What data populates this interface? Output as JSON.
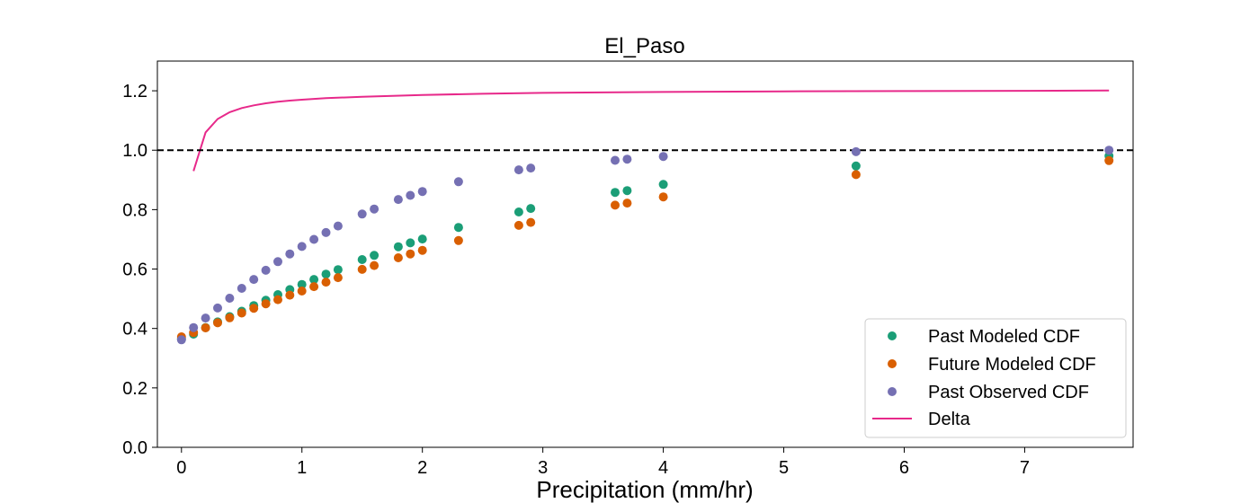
{
  "chart_data": {
    "type": "scatter",
    "title": "El_Paso",
    "xlabel": "Precipitation (mm/hr)",
    "ylabel": "",
    "xlim": [
      -0.2,
      7.9
    ],
    "ylim": [
      0.0,
      1.3
    ],
    "xticks": [
      "0",
      "1",
      "2",
      "3",
      "4",
      "5",
      "6",
      "7"
    ],
    "yticks": [
      "0.0",
      "0.2",
      "0.4",
      "0.6",
      "0.8",
      "1.0",
      "1.2"
    ],
    "grid": false,
    "legend_position": "lower-right",
    "reference_line": {
      "y": 1.0,
      "style": "dashed",
      "color": "#000000"
    },
    "series": [
      {
        "name": "Past Modeled CDF",
        "kind": "scatter",
        "color": "#1b9e77",
        "x": [
          0.0,
          0.1,
          0.2,
          0.3,
          0.4,
          0.5,
          0.6,
          0.7,
          0.8,
          0.9,
          1.0,
          1.1,
          1.2,
          1.3,
          1.5,
          1.6,
          1.8,
          1.9,
          2.0,
          2.3,
          2.8,
          2.9,
          3.6,
          3.7,
          4.0,
          5.6,
          7.7
        ],
        "y": [
          0.365,
          0.381,
          0.403,
          0.422,
          0.44,
          0.458,
          0.477,
          0.495,
          0.514,
          0.531,
          0.548,
          0.565,
          0.583,
          0.598,
          0.632,
          0.646,
          0.675,
          0.688,
          0.701,
          0.74,
          0.792,
          0.804,
          0.858,
          0.864,
          0.885,
          0.947,
          0.981
        ]
      },
      {
        "name": "Future Modeled CDF",
        "kind": "scatter",
        "color": "#d95f02",
        "x": [
          0.0,
          0.1,
          0.2,
          0.3,
          0.4,
          0.5,
          0.6,
          0.7,
          0.8,
          0.9,
          1.0,
          1.1,
          1.2,
          1.3,
          1.5,
          1.6,
          1.8,
          1.9,
          2.0,
          2.3,
          2.8,
          2.9,
          3.6,
          3.7,
          4.0,
          5.6,
          7.7
        ],
        "y": [
          0.372,
          0.386,
          0.402,
          0.419,
          0.436,
          0.452,
          0.468,
          0.483,
          0.497,
          0.512,
          0.526,
          0.541,
          0.556,
          0.571,
          0.599,
          0.612,
          0.638,
          0.651,
          0.663,
          0.696,
          0.747,
          0.757,
          0.815,
          0.822,
          0.843,
          0.918,
          0.965
        ]
      },
      {
        "name": "Past Observed CDF",
        "kind": "scatter",
        "color": "#7570b3",
        "x": [
          0.0,
          0.1,
          0.2,
          0.3,
          0.4,
          0.5,
          0.6,
          0.7,
          0.8,
          0.9,
          1.0,
          1.1,
          1.2,
          1.3,
          1.5,
          1.6,
          1.8,
          1.9,
          2.0,
          2.3,
          2.8,
          2.9,
          3.6,
          3.7,
          4.0,
          5.6,
          7.7
        ],
        "y": [
          0.362,
          0.403,
          0.435,
          0.469,
          0.502,
          0.535,
          0.565,
          0.596,
          0.625,
          0.651,
          0.676,
          0.7,
          0.723,
          0.745,
          0.785,
          0.802,
          0.834,
          0.848,
          0.861,
          0.894,
          0.934,
          0.94,
          0.966,
          0.97,
          0.979,
          0.995,
          1.0
        ]
      },
      {
        "name": "Delta",
        "kind": "line",
        "color": "#e7298a",
        "x": [
          0.1,
          0.2,
          0.3,
          0.4,
          0.5,
          0.6,
          0.7,
          0.8,
          0.9,
          1.0,
          1.2,
          1.5,
          2.0,
          2.5,
          3.0,
          4.0,
          5.0,
          6.0,
          7.0,
          7.7
        ],
        "y": [
          0.93,
          1.06,
          1.105,
          1.128,
          1.142,
          1.151,
          1.158,
          1.163,
          1.167,
          1.17,
          1.175,
          1.18,
          1.186,
          1.19,
          1.193,
          1.196,
          1.198,
          1.199,
          1.2,
          1.201
        ]
      }
    ]
  }
}
